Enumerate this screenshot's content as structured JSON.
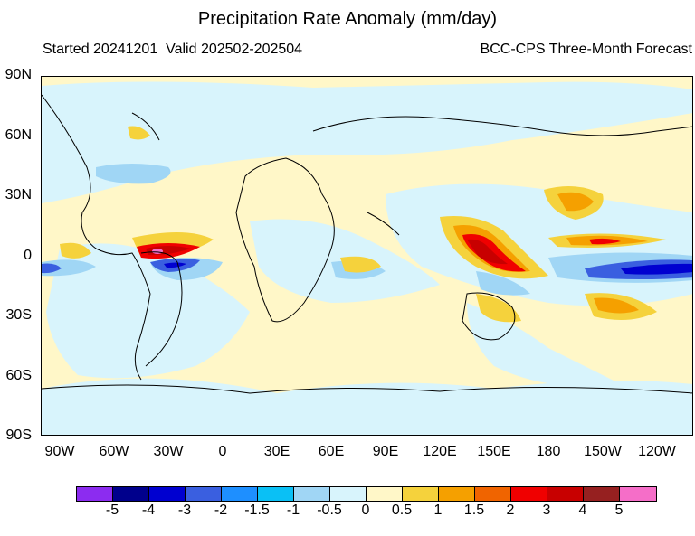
{
  "title": "Precipitation Rate Anomaly (mm/day)",
  "subtitle_left": "Started 20241201  Valid 202502-202504",
  "subtitle_right": "BCC-CPS Three-Month Forecast",
  "lat_labels": [
    "90N",
    "60N",
    "30N",
    "0",
    "30S",
    "60S",
    "90S"
  ],
  "lon_labels": [
    "90W",
    "60W",
    "30W",
    "0",
    "30E",
    "60E",
    "90E",
    "120E",
    "150E",
    "180",
    "150W",
    "120W"
  ],
  "colorbar": {
    "colors": [
      "#8c2cf0",
      "#00008c",
      "#0000d0",
      "#3a5fe0",
      "#1e8fff",
      "#0ac0f5",
      "#a0d6f5",
      "#d8f4fc",
      "#fff7c8",
      "#f5d23c",
      "#f5a000",
      "#f06400",
      "#f00000",
      "#c80000",
      "#962020",
      "#f56ec8"
    ],
    "labels": [
      "-5",
      "-4",
      "-3",
      "-2",
      "-1.5",
      "-1",
      "-0.5",
      "0",
      "0.5",
      "1",
      "1.5",
      "2",
      "3",
      "4",
      "5"
    ]
  }
}
